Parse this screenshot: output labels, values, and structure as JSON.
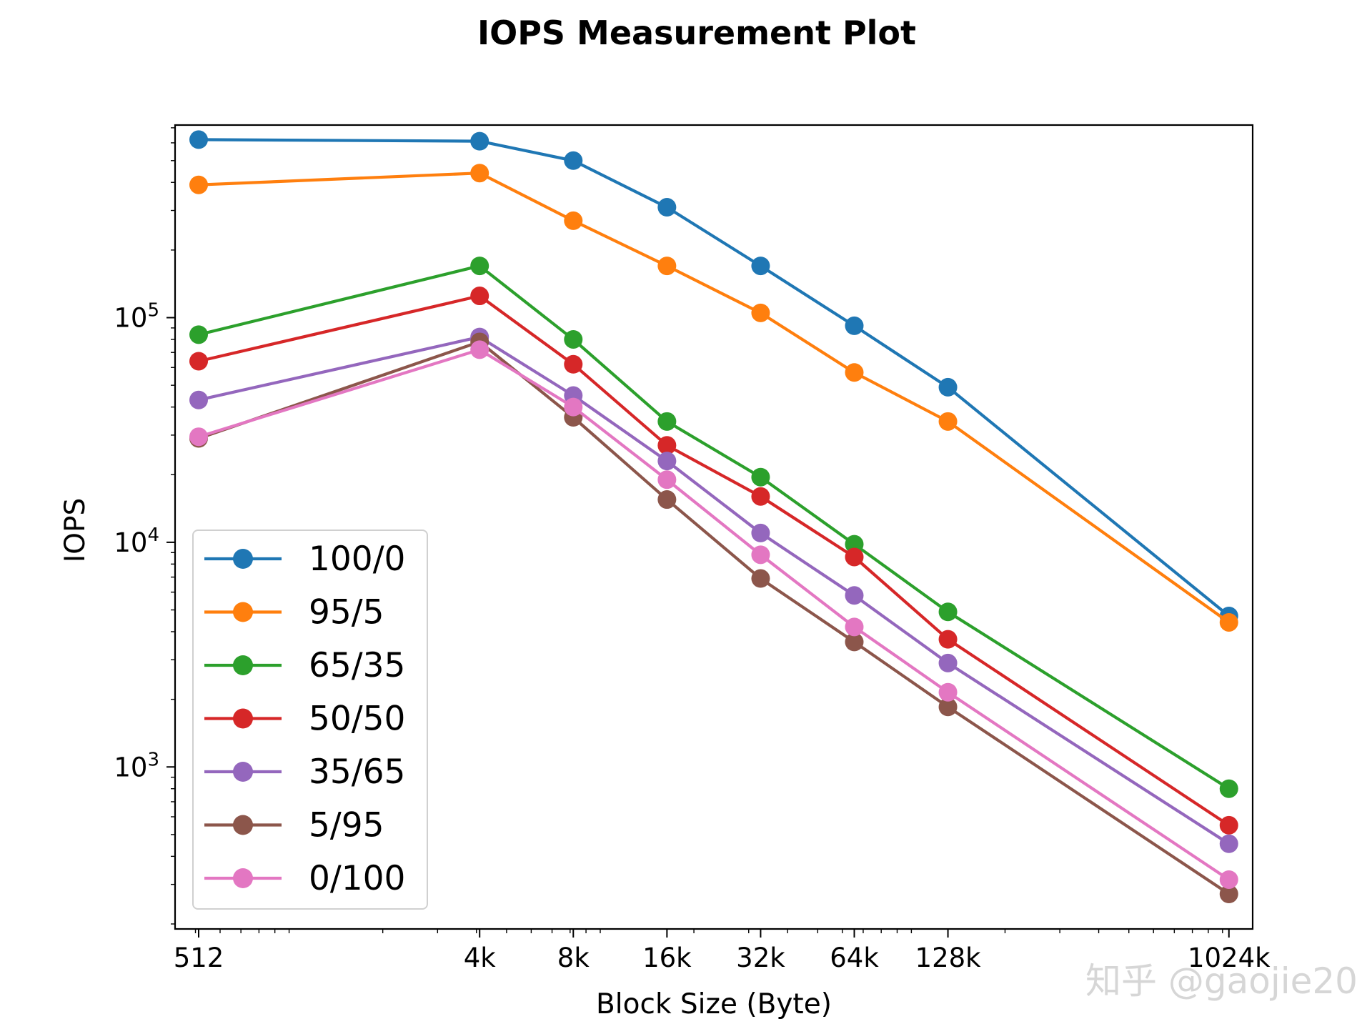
{
  "chart_data": {
    "type": "line",
    "title": "IOPS Measurement Plot",
    "xlabel": "Block Size (Byte)",
    "ylabel": "IOPS",
    "x_scale": "log2",
    "y_scale": "log10",
    "x": [
      512,
      4096,
      8192,
      16384,
      32768,
      65536,
      131072,
      1048576
    ],
    "x_tick_labels": [
      "512",
      "4k",
      "8k",
      "16k",
      "32k",
      "64k",
      "128k",
      "1024k"
    ],
    "xlim": [
      430,
      1250000
    ],
    "ylim": [
      190,
      720000
    ],
    "y_major_ticks": [
      {
        "value": 1000,
        "base": "10",
        "exp": "3"
      },
      {
        "value": 10000,
        "base": "10",
        "exp": "4"
      },
      {
        "value": 100000,
        "base": "10",
        "exp": "5"
      }
    ],
    "legend_position": "lower-left",
    "grid": false,
    "series": [
      {
        "name": "100/0",
        "color": "#1f77b4",
        "values": [
          620000,
          610000,
          500000,
          310000,
          170000,
          92000,
          49000,
          4700
        ]
      },
      {
        "name": "95/5",
        "color": "#ff7f0e",
        "values": [
          390000,
          440000,
          270000,
          170000,
          105000,
          57000,
          34500,
          4400
        ]
      },
      {
        "name": "65/35",
        "color": "#2ca02c",
        "values": [
          84000,
          170000,
          80000,
          34500,
          19500,
          9800,
          4900,
          800
        ]
      },
      {
        "name": "50/50",
        "color": "#d62728",
        "values": [
          64000,
          125000,
          62000,
          27000,
          16000,
          8600,
          3700,
          550
        ]
      },
      {
        "name": "35/65",
        "color": "#9467bd",
        "values": [
          43000,
          82000,
          45000,
          23000,
          11000,
          5800,
          2900,
          455
        ]
      },
      {
        "name": "5/95",
        "color": "#8c564b",
        "values": [
          29000,
          78000,
          36000,
          15500,
          6900,
          3600,
          1850,
          272
        ]
      },
      {
        "name": "0/100",
        "color": "#e377c2",
        "values": [
          29500,
          72000,
          40000,
          19000,
          8800,
          4200,
          2150,
          315
        ]
      }
    ]
  },
  "watermark": {
    "text": "知乎 @gaojie20"
  }
}
